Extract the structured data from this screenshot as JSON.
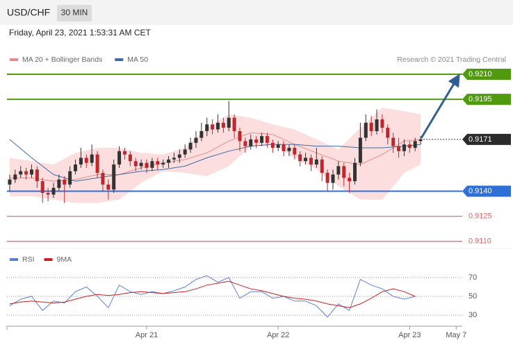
{
  "header": {
    "symbol": "USD/CHF",
    "interval": "30 MIN",
    "timestamp": "Friday, April 23, 2021 1:53:31 AM CET"
  },
  "chart_data": [
    {
      "type": "candlestick",
      "source": "Research © 2021 Trading Central",
      "xlim": [
        -1.5,
        81.6
      ],
      "ylim": [
        0.9107,
        0.9215
      ],
      "up_color": "#333333",
      "down_color": "#c0272d",
      "x": [
        -1,
        0,
        1,
        2,
        3,
        4,
        5,
        6,
        7,
        8,
        9,
        10,
        11,
        12,
        13,
        14,
        15,
        16,
        17,
        18,
        19,
        20,
        21,
        22,
        23,
        24,
        25,
        26,
        27,
        28,
        29,
        30,
        31,
        32,
        33,
        34,
        35,
        36,
        37,
        38,
        39,
        40,
        41,
        42,
        43,
        44,
        45,
        46,
        47,
        48,
        49,
        50,
        51,
        52,
        53,
        54,
        55,
        56,
        57,
        58,
        59,
        60,
        61,
        62,
        63,
        64,
        65,
        66,
        67,
        68,
        69,
        70,
        71,
        72,
        73,
        74
      ],
      "open": [
        0.9144,
        0.9147,
        0.915,
        0.9152,
        0.915,
        0.9153,
        0.9146,
        0.9139,
        0.9138,
        0.9142,
        0.9147,
        0.9144,
        0.9152,
        0.9156,
        0.916,
        0.9157,
        0.9162,
        0.9151,
        0.9144,
        0.9141,
        0.9156,
        0.9164,
        0.9162,
        0.9158,
        0.9155,
        0.9157,
        0.9154,
        0.9158,
        0.9156,
        0.9157,
        0.9159,
        0.916,
        0.9162,
        0.9165,
        0.9169,
        0.9172,
        0.9176,
        0.918,
        0.9177,
        0.9181,
        0.9178,
        0.9184,
        0.9176,
        0.917,
        0.9167,
        0.9171,
        0.9169,
        0.9173,
        0.9169,
        0.9166,
        0.9168,
        0.9164,
        0.9166,
        0.9162,
        0.9158,
        0.916,
        0.9156,
        0.9159,
        0.9151,
        0.9145,
        0.915,
        0.9155,
        0.9148,
        0.9146,
        0.9157,
        0.9172,
        0.9181,
        0.9176,
        0.9183,
        0.9178,
        0.9172,
        0.9167,
        0.9164,
        0.9168,
        0.9166,
        0.917
      ],
      "high": [
        0.915,
        0.9153,
        0.9155,
        0.9154,
        0.9156,
        0.9155,
        0.9148,
        0.9142,
        0.9145,
        0.915,
        0.9149,
        0.9155,
        0.9159,
        0.9166,
        0.9162,
        0.9168,
        0.9164,
        0.9153,
        0.9147,
        0.9159,
        0.9167,
        0.9166,
        0.9164,
        0.916,
        0.9159,
        0.9159,
        0.916,
        0.916,
        0.9159,
        0.9161,
        0.9163,
        0.9165,
        0.9168,
        0.9172,
        0.9176,
        0.9181,
        0.9184,
        0.9183,
        0.9186,
        0.9184,
        0.9194,
        0.9186,
        0.9178,
        0.9172,
        0.9174,
        0.9173,
        0.9175,
        0.9175,
        0.9171,
        0.917,
        0.917,
        0.9168,
        0.9168,
        0.9164,
        0.9163,
        0.9162,
        0.9166,
        0.9161,
        0.9153,
        0.9153,
        0.9158,
        0.9157,
        0.9151,
        0.916,
        0.9181,
        0.9186,
        0.9185,
        0.9189,
        0.9186,
        0.918,
        0.9175,
        0.9172,
        0.9171,
        0.917,
        0.9172,
        0.9173
      ],
      "low": [
        0.914,
        0.9145,
        0.9148,
        0.9147,
        0.9148,
        0.9142,
        0.9133,
        0.9134,
        0.9136,
        0.914,
        0.9133,
        0.9142,
        0.915,
        0.9154,
        0.9154,
        0.9155,
        0.9148,
        0.914,
        0.9135,
        0.9139,
        0.9154,
        0.9159,
        0.9155,
        0.9152,
        0.9153,
        0.9151,
        0.9152,
        0.9153,
        0.9154,
        0.9154,
        0.9157,
        0.9157,
        0.916,
        0.9163,
        0.9166,
        0.917,
        0.9173,
        0.9174,
        0.9175,
        0.9175,
        0.9176,
        0.9172,
        0.9164,
        0.9163,
        0.9165,
        0.9166,
        0.9167,
        0.9166,
        0.9163,
        0.9164,
        0.9161,
        0.9161,
        0.9159,
        0.9155,
        0.9156,
        0.9152,
        0.9154,
        0.9146,
        0.914,
        0.9141,
        0.9147,
        0.9143,
        0.9139,
        0.9144,
        0.9155,
        0.917,
        0.9173,
        0.9174,
        0.9175,
        0.9168,
        0.9163,
        0.916,
        0.9161,
        0.9163,
        0.9164,
        0.9168
      ],
      "close": [
        0.9147,
        0.915,
        0.9152,
        0.915,
        0.9153,
        0.9146,
        0.9139,
        0.9138,
        0.9142,
        0.9147,
        0.9144,
        0.9152,
        0.9156,
        0.916,
        0.9157,
        0.9162,
        0.9151,
        0.9144,
        0.9141,
        0.9156,
        0.9164,
        0.9162,
        0.9158,
        0.9155,
        0.9157,
        0.9154,
        0.9158,
        0.9156,
        0.9157,
        0.9159,
        0.916,
        0.9162,
        0.9165,
        0.9169,
        0.9172,
        0.9176,
        0.918,
        0.9177,
        0.9181,
        0.9178,
        0.9184,
        0.9176,
        0.917,
        0.9167,
        0.9171,
        0.9169,
        0.9173,
        0.9169,
        0.9166,
        0.9168,
        0.9164,
        0.9166,
        0.9162,
        0.9158,
        0.916,
        0.9156,
        0.9159,
        0.9151,
        0.9145,
        0.915,
        0.9155,
        0.9148,
        0.9146,
        0.9157,
        0.9172,
        0.9181,
        0.9176,
        0.9183,
        0.9178,
        0.9172,
        0.9167,
        0.9164,
        0.9168,
        0.9166,
        0.917,
        0.9171
      ],
      "series": [
        {
          "name": "MA 20 + Bollinger Bands",
          "color": "#e88a8a",
          "band_color": "#fbd3d3",
          "x": [
            -1,
            3,
            7,
            11,
            15,
            19,
            23,
            27,
            31,
            35,
            39,
            43,
            47,
            51,
            55,
            59,
            63,
            67,
            71,
            74
          ],
          "values": [
            0.9148,
            0.9148,
            0.9146,
            0.9147,
            0.915,
            0.915,
            0.9154,
            0.9157,
            0.9159,
            0.9163,
            0.917,
            0.9175,
            0.9174,
            0.9168,
            0.9163,
            0.9158,
            0.9156,
            0.9162,
            0.917,
            0.9171
          ],
          "upper": [
            0.916,
            0.9158,
            0.9156,
            0.9163,
            0.9166,
            0.9166,
            0.9163,
            0.9162,
            0.9166,
            0.9178,
            0.9186,
            0.9184,
            0.918,
            0.9177,
            0.9171,
            0.9165,
            0.9178,
            0.919,
            0.9188,
            0.9186
          ],
          "lower": [
            0.9137,
            0.9137,
            0.9135,
            0.9133,
            0.9133,
            0.9135,
            0.9145,
            0.9152,
            0.9151,
            0.9149,
            0.9155,
            0.9167,
            0.9168,
            0.916,
            0.9153,
            0.9143,
            0.9135,
            0.9135,
            0.9151,
            0.9156
          ]
        },
        {
          "name": "MA 50",
          "color": "#3c6aa3",
          "x": [
            -1,
            3,
            7,
            11,
            15,
            19,
            23,
            27,
            31,
            35,
            39,
            43,
            47,
            51,
            55,
            59,
            63,
            67,
            71,
            74
          ],
          "values": [
            0.9171,
            0.916,
            0.915,
            0.9146,
            0.9148,
            0.915,
            0.9152,
            0.9153,
            0.9155,
            0.916,
            0.9164,
            0.9167,
            0.9168,
            0.9168,
            0.9167,
            0.9167,
            0.9166,
            0.9166,
            0.9167,
            0.9168
          ]
        }
      ],
      "levels": [
        {
          "value": 0.921,
          "label": "0.9210",
          "color": "#4f9a0f",
          "style": "solid",
          "label_style": "box"
        },
        {
          "value": 0.9195,
          "label": "0.9195",
          "color": "#4f9a0f",
          "style": "solid",
          "label_style": "box"
        },
        {
          "value": 0.9171,
          "label": "0.9171",
          "color": "#2b2b2b",
          "style": "dotted",
          "label_style": "box"
        },
        {
          "value": 0.914,
          "label": "0.9140",
          "color": "#2f6fd8",
          "style": "solid",
          "label_style": "box"
        },
        {
          "value": 0.9125,
          "label": "0.9125",
          "color": "#e06060",
          "style": "solid",
          "label_style": "text"
        },
        {
          "value": 0.911,
          "label": "0.9110",
          "color": "#e06060",
          "style": "solid",
          "label_style": "text"
        }
      ]
    },
    {
      "type": "line",
      "xlim": [
        -1.5,
        81.6
      ],
      "ylim": [
        22,
        81
      ],
      "yticks": [
        30,
        50,
        70
      ],
      "grid": true,
      "xticks": [
        {
          "value": 24,
          "label": "Apr 21"
        },
        {
          "value": 48,
          "label": "Apr 22"
        },
        {
          "value": 72,
          "label": "Apr 23"
        },
        {
          "value": 80.5,
          "label": "May 7"
        }
      ],
      "series": [
        {
          "name": "RSI",
          "color": "#5b7fd6",
          "x": [
            -1,
            1,
            3,
            5,
            7,
            9,
            11,
            13,
            15,
            17,
            19,
            21,
            23,
            25,
            27,
            29,
            31,
            33,
            35,
            37,
            39,
            41,
            43,
            45,
            47,
            49,
            51,
            53,
            55,
            57,
            59,
            61,
            63,
            65,
            67,
            69,
            71,
            73
          ],
          "values": [
            40,
            47,
            50,
            35,
            45,
            43,
            55,
            60,
            50,
            38,
            62,
            55,
            52,
            55,
            53,
            56,
            60,
            68,
            72,
            65,
            70,
            48,
            55,
            55,
            48,
            50,
            45,
            45,
            40,
            28,
            42,
            35,
            68,
            62,
            58,
            50,
            47,
            50
          ]
        },
        {
          "name": "9MA",
          "color": "#cc1f1f",
          "x": [
            -1,
            1,
            3,
            5,
            7,
            9,
            11,
            13,
            15,
            17,
            19,
            21,
            23,
            25,
            27,
            29,
            31,
            33,
            35,
            37,
            39,
            41,
            43,
            45,
            47,
            49,
            51,
            53,
            55,
            57,
            59,
            61,
            63,
            65,
            67,
            69,
            71,
            73
          ],
          "values": [
            42,
            44,
            45,
            44,
            43,
            44,
            47,
            50,
            52,
            51,
            52,
            54,
            55,
            54,
            53,
            54,
            55,
            58,
            62,
            64,
            66,
            62,
            58,
            56,
            53,
            50,
            48,
            47,
            45,
            42,
            40,
            38,
            42,
            48,
            55,
            58,
            55,
            50
          ]
        }
      ]
    }
  ]
}
